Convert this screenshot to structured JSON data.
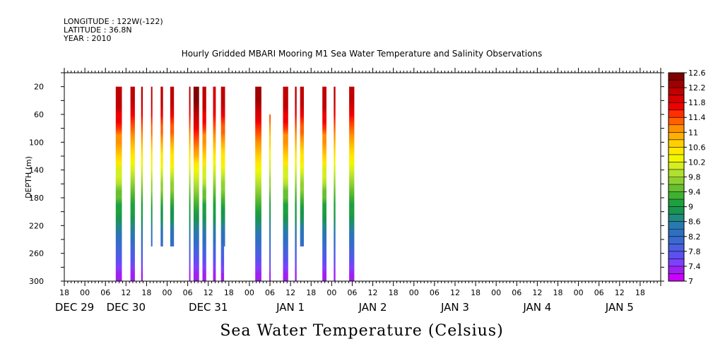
{
  "header": {
    "longitude": "LONGITUDE : 122W(-122)",
    "latitude": "LATITUDE : 36.8N",
    "year": "YEAR : 2010"
  },
  "chart_data": {
    "type": "heatmap",
    "title": "Hourly Gridded MBARI Mooring M1 Sea Water Temperature and Salinity Observations",
    "xlabel": "Sea Water Temperature (Celsius)",
    "ylabel": "DEPTH (m)",
    "x_range_hours": [
      0,
      174
    ],
    "x_hour_ticks": [
      {
        "h": 0,
        "label": "18"
      },
      {
        "h": 6,
        "label": "00"
      },
      {
        "h": 12,
        "label": "06"
      },
      {
        "h": 18,
        "label": "12"
      },
      {
        "h": 24,
        "label": "18"
      },
      {
        "h": 30,
        "label": "00"
      },
      {
        "h": 36,
        "label": "06"
      },
      {
        "h": 42,
        "label": "12"
      },
      {
        "h": 48,
        "label": "18"
      },
      {
        "h": 54,
        "label": "00"
      },
      {
        "h": 60,
        "label": "06"
      },
      {
        "h": 66,
        "label": "12"
      },
      {
        "h": 72,
        "label": "18"
      },
      {
        "h": 78,
        "label": "00"
      },
      {
        "h": 84,
        "label": "06"
      },
      {
        "h": 90,
        "label": "12"
      },
      {
        "h": 96,
        "label": "18"
      },
      {
        "h": 102,
        "label": "00"
      },
      {
        "h": 108,
        "label": "06"
      },
      {
        "h": 114,
        "label": "12"
      },
      {
        "h": 120,
        "label": "18"
      },
      {
        "h": 126,
        "label": "00"
      },
      {
        "h": 132,
        "label": "06"
      },
      {
        "h": 138,
        "label": "12"
      },
      {
        "h": 144,
        "label": "18"
      },
      {
        "h": 150,
        "label": "00"
      },
      {
        "h": 156,
        "label": "06"
      },
      {
        "h": 162,
        "label": "12"
      },
      {
        "h": 168,
        "label": "18"
      }
    ],
    "x_day_labels": [
      {
        "h": 3,
        "label": "DEC 29"
      },
      {
        "h": 18,
        "label": "DEC 30"
      },
      {
        "h": 42,
        "label": "DEC 31"
      },
      {
        "h": 66,
        "label": "JAN  1"
      },
      {
        "h": 90,
        "label": "JAN  2"
      },
      {
        "h": 114,
        "label": "JAN  3"
      },
      {
        "h": 138,
        "label": "JAN  4"
      },
      {
        "h": 162,
        "label": "JAN  5"
      }
    ],
    "y_range": [
      0,
      300
    ],
    "y_ticks": [
      20,
      60,
      100,
      140,
      180,
      220,
      260,
      300
    ],
    "colorbar_labels": [
      "12.6",
      "12.2",
      "11.8",
      "11.4",
      "11",
      "10.6",
      "10.2",
      "9.8",
      "9.4",
      "9",
      "8.6",
      "8.2",
      "7.8",
      "7.4",
      "7"
    ],
    "colorbar_levels": [
      7,
      7.2,
      7.4,
      7.6,
      7.8,
      8,
      8.2,
      8.4,
      8.6,
      8.8,
      9,
      9.2,
      9.4,
      9.6,
      9.8,
      10,
      10.2,
      10.4,
      10.6,
      10.8,
      11,
      11.2,
      11.4,
      11.6,
      11.8,
      12,
      12.2,
      12.4,
      12.6
    ],
    "colormap": [
      "#cc00ff",
      "#a020f0",
      "#7f3fff",
      "#5c50f0",
      "#4a5fe0",
      "#3a6ad0",
      "#2e70c0",
      "#2a78b0",
      "#1f8a80",
      "#1a9450",
      "#1ea040",
      "#40b030",
      "#66c030",
      "#8fd030",
      "#b0e030",
      "#d4ee20",
      "#f0f800",
      "#ffe800",
      "#ffd000",
      "#ffb000",
      "#ff9000",
      "#ff6000",
      "#ff3000",
      "#f00000",
      "#d80000",
      "#c00000",
      "#a00000",
      "#800000"
    ],
    "segments": [
      {
        "start": 15,
        "end": 16.8,
        "top": 20,
        "bottom": 300,
        "surface": 12.1
      },
      {
        "start": 19.3,
        "end": 20.6,
        "top": 20,
        "bottom": 300,
        "surface": 12.0
      },
      {
        "start": 22.4,
        "end": 22.9,
        "top": 20,
        "bottom": 300,
        "surface": 12.0
      },
      {
        "start": 25.3,
        "end": 25.7,
        "top": 20,
        "bottom": 250,
        "surface": 12.0
      },
      {
        "start": 28.1,
        "end": 28.8,
        "top": 20,
        "bottom": 250,
        "surface": 12.0
      },
      {
        "start": 30.9,
        "end": 32,
        "top": 20,
        "bottom": 250,
        "surface": 12.0
      },
      {
        "start": 36.4,
        "end": 36.8,
        "top": 20,
        "bottom": 300,
        "surface": 12.0
      },
      {
        "start": 37.7,
        "end": 39.3,
        "top": 20,
        "bottom": 300,
        "surface": 12.5
      },
      {
        "start": 40.3,
        "end": 41.4,
        "top": 20,
        "bottom": 300,
        "surface": 12.1
      },
      {
        "start": 43.4,
        "end": 44.2,
        "top": 20,
        "bottom": 300,
        "surface": 11.9
      },
      {
        "start": 45.7,
        "end": 46.9,
        "top": 20,
        "bottom": 250,
        "surface": 12.0
      },
      {
        "start": 45.7,
        "end": 46.6,
        "top": 250,
        "bottom": 300,
        "surface": 12.0
      },
      {
        "start": 55.7,
        "end": 57.5,
        "top": 20,
        "bottom": 300,
        "surface": 12.3
      },
      {
        "start": 59.8,
        "end": 60.2,
        "top": 60,
        "bottom": 300,
        "surface": 11.6
      },
      {
        "start": 63.8,
        "end": 65.3,
        "top": 20,
        "bottom": 300,
        "surface": 12.1
      },
      {
        "start": 67.3,
        "end": 67.8,
        "top": 20,
        "bottom": 300,
        "surface": 12.0
      },
      {
        "start": 68.8,
        "end": 69.9,
        "top": 20,
        "bottom": 250,
        "surface": 12.0
      },
      {
        "start": 75.3,
        "end": 76.5,
        "top": 20,
        "bottom": 300,
        "surface": 12.1
      },
      {
        "start": 78.6,
        "end": 79.1,
        "top": 20,
        "bottom": 300,
        "surface": 12.0
      },
      {
        "start": 83.1,
        "end": 84.6,
        "top": 20,
        "bottom": 300,
        "surface": 12.0
      }
    ]
  }
}
